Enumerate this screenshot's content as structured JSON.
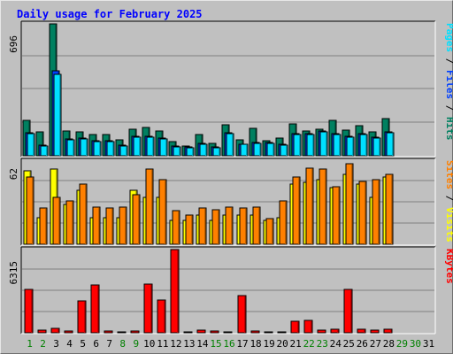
{
  "chart_data": {
    "type": "bar",
    "title": "Daily usage for February 2025",
    "days": [
      "1",
      "2",
      "3",
      "4",
      "5",
      "6",
      "7",
      "8",
      "9",
      "10",
      "11",
      "12",
      "13",
      "14",
      "15",
      "16",
      "17",
      "18",
      "19",
      "20",
      "21",
      "22",
      "23",
      "24",
      "25",
      "26",
      "27",
      "28",
      "29",
      "30",
      "31"
    ],
    "weekend_days": [
      "1",
      "2",
      "8",
      "9",
      "15",
      "16",
      "22",
      "23",
      "29",
      "30"
    ],
    "panels": [
      {
        "name": "hits-files-pages",
        "ymax_label": "696",
        "ylim": [
          0,
          696
        ],
        "right_label_parts": [
          {
            "text": "Pages",
            "color": "#00e0ff"
          },
          {
            "text": " / ",
            "color": "#000000"
          },
          {
            "text": "Files",
            "color": "#0040ff"
          },
          {
            "text": " / ",
            "color": "#000000"
          },
          {
            "text": "Hits",
            "color": "#008060"
          }
        ],
        "series": [
          {
            "name": "Hits",
            "color": "#008060",
            "values": [
              185,
              125,
              696,
              130,
              125,
              110,
              110,
              85,
              140,
              150,
              130,
              75,
              52,
              110,
              65,
              165,
              85,
              145,
              80,
              95,
              170,
              130,
              140,
              185,
              135,
              160,
              125,
              195,
              0,
              0,
              0
            ]
          },
          {
            "name": "Files",
            "color": "#0040ff",
            "values": [
              120,
              55,
              450,
              90,
              95,
              80,
              80,
              55,
              105,
              105,
              95,
              50,
              45,
              65,
              45,
              120,
              60,
              70,
              70,
              60,
              115,
              115,
              130,
              115,
              105,
              115,
              100,
              125,
              0,
              0,
              0
            ]
          },
          {
            "name": "Pages",
            "color": "#00e0ff",
            "values": [
              115,
              50,
              430,
              85,
              90,
              75,
              75,
              50,
              100,
              100,
              90,
              45,
              40,
              60,
              40,
              115,
              60,
              65,
              65,
              55,
              110,
              110,
              125,
              110,
              100,
              110,
              95,
              120,
              0,
              0,
              0
            ]
          }
        ]
      },
      {
        "name": "visits-sites",
        "ymax_label": "62",
        "ylim": [
          0,
          62
        ],
        "right_label_parts": [
          {
            "text": "Sites",
            "color": "#ff8000"
          },
          {
            "text": " / ",
            "color": "#000000"
          },
          {
            "text": "Visits",
            "color": "#ffff00"
          }
        ],
        "series": [
          {
            "name": "Visits",
            "color": "#ffff00",
            "values": [
              55,
              20,
              56,
              30,
              40,
              20,
              20,
              20,
              40,
              35,
              35,
              18,
              18,
              22,
              18,
              22,
              22,
              22,
              18,
              20,
              45,
              46,
              48,
              42,
              52,
              45,
              35,
              50,
              0,
              0,
              0
            ]
          },
          {
            "name": "Sites",
            "color": "#ff8000",
            "values": [
              50,
              27,
              35,
              32,
              45,
              28,
              27,
              28,
              37,
              56,
              48,
              25,
              22,
              27,
              26,
              28,
              27,
              28,
              19,
              32,
              50,
              57,
              56,
              43,
              60,
              47,
              48,
              52,
              0,
              0,
              0
            ]
          }
        ]
      },
      {
        "name": "kbytes",
        "ymax_label": "6315",
        "ylim": [
          0,
          6315
        ],
        "right_label_parts": [
          {
            "text": "KBytes",
            "color": "#ff0000"
          }
        ],
        "series": [
          {
            "name": "KBytes",
            "color": "#ff0000",
            "values": [
              3300,
              180,
              350,
              150,
              2400,
              3600,
              150,
              80,
              110,
              3700,
              2500,
              6315,
              80,
              180,
              120,
              80,
              2800,
              150,
              90,
              100,
              850,
              950,
              180,
              250,
              3300,
              260,
              180,
              250,
              0,
              0,
              0
            ]
          }
        ]
      }
    ]
  }
}
